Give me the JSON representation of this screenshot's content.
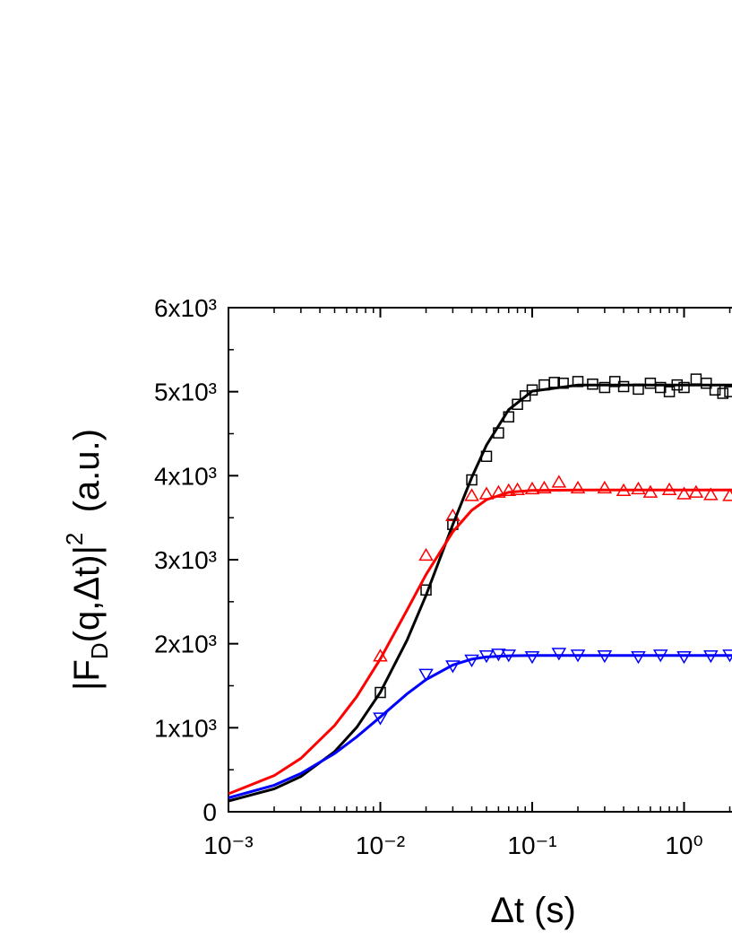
{
  "chart_data": {
    "type": "scatter",
    "xlabel": "Δt (s)",
    "ylabel_parts": [
      "|F",
      "D",
      "(q,Δt)|",
      "2",
      "  (a.u.)"
    ],
    "xscale": "log",
    "xlim": [
      0.001,
      2.1
    ],
    "ylim": [
      0,
      6000
    ],
    "xticks": [
      {
        "value": 0.001,
        "label": "10⁻³"
      },
      {
        "value": 0.01,
        "label": "10⁻²"
      },
      {
        "value": 0.1,
        "label": "10⁻¹"
      },
      {
        "value": 1,
        "label": "10⁰"
      }
    ],
    "xminorticks": [
      0.002,
      0.003,
      0.004,
      0.005,
      0.006,
      0.007,
      0.008,
      0.009,
      0.02,
      0.03,
      0.04,
      0.05,
      0.06,
      0.07,
      0.08,
      0.09,
      0.2,
      0.3,
      0.4,
      0.5,
      0.6,
      0.7,
      0.8,
      0.9,
      2
    ],
    "yticks": [
      0,
      {
        "value": 1000,
        "label": "1x10³"
      },
      {
        "value": 2000,
        "label": "2x10³"
      },
      {
        "value": 3000,
        "label": "3x10³"
      },
      {
        "value": 4000,
        "label": "4x10³"
      },
      {
        "value": 5000,
        "label": "5x10³"
      },
      {
        "value": 6000,
        "label": "6x10³"
      }
    ],
    "yminorticks": [
      500,
      1500,
      2500,
      3500,
      4500,
      5500
    ],
    "series": [
      {
        "color": "#000000",
        "marker": "square",
        "x": [
          0.01,
          0.02,
          0.03,
          0.04,
          0.05,
          0.06,
          0.07,
          0.08,
          0.09,
          0.1,
          0.12,
          0.14,
          0.16,
          0.2,
          0.25,
          0.3,
          0.35,
          0.4,
          0.5,
          0.6,
          0.7,
          0.8,
          0.9,
          1.0,
          1.2,
          1.4,
          1.6,
          1.8,
          2.0
        ],
        "values": [
          1420,
          2640,
          3420,
          3950,
          4230,
          4510,
          4700,
          4850,
          4950,
          5020,
          5080,
          5110,
          5100,
          5120,
          5090,
          5050,
          5120,
          5060,
          5030,
          5100,
          5050,
          5000,
          5080,
          5050,
          5150,
          5100,
          5020,
          4980,
          5000
        ]
      },
      {
        "color": "#ff0000",
        "marker": "triangle-up",
        "x": [
          0.01,
          0.02,
          0.03,
          0.04,
          0.05,
          0.06,
          0.07,
          0.08,
          0.1,
          0.12,
          0.15,
          0.2,
          0.3,
          0.4,
          0.5,
          0.6,
          0.8,
          1.0,
          1.2,
          1.5,
          2.0
        ],
        "values": [
          1850,
          3050,
          3520,
          3760,
          3780,
          3800,
          3820,
          3830,
          3840,
          3850,
          3920,
          3850,
          3850,
          3820,
          3840,
          3800,
          3830,
          3780,
          3800,
          3770,
          3760
        ]
      },
      {
        "color": "#0000ff",
        "marker": "triangle-down",
        "x": [
          0.01,
          0.02,
          0.03,
          0.04,
          0.05,
          0.06,
          0.07,
          0.1,
          0.15,
          0.2,
          0.3,
          0.5,
          0.7,
          1.0,
          1.5,
          2.0
        ],
        "values": [
          1120,
          1640,
          1740,
          1810,
          1860,
          1880,
          1870,
          1850,
          1890,
          1870,
          1860,
          1850,
          1870,
          1850,
          1860,
          1870
        ]
      }
    ],
    "fits": [
      {
        "color": "#000000",
        "x": [
          0.001,
          0.002,
          0.003,
          0.005,
          0.007,
          0.01,
          0.015,
          0.02,
          0.03,
          0.04,
          0.05,
          0.07,
          0.1,
          0.2,
          0.5,
          1,
          2.1
        ],
        "values": [
          128,
          272,
          420,
          716,
          1006,
          1422,
          2042,
          2576,
          3419,
          3978,
          4364,
          4785,
          5006,
          5079,
          5080,
          5080,
          5080
        ]
      },
      {
        "color": "#ff0000",
        "x": [
          0.001,
          0.002,
          0.003,
          0.005,
          0.007,
          0.01,
          0.015,
          0.02,
          0.03,
          0.04,
          0.05,
          0.07,
          0.1,
          0.2,
          0.5,
          1,
          2.1
        ],
        "values": [
          214,
          430,
          636,
          1027,
          1371,
          1819,
          2401,
          2823,
          3332,
          3588,
          3714,
          3803,
          3825,
          3830,
          3830,
          3830,
          3830
        ]
      },
      {
        "color": "#0000ff",
        "x": [
          0.001,
          0.002,
          0.003,
          0.005,
          0.007,
          0.01,
          0.015,
          0.02,
          0.03,
          0.04,
          0.05,
          0.07,
          0.1,
          0.2,
          0.5,
          1,
          2.1
        ],
        "values": [
          166,
          316,
          456,
          694,
          893,
          1129,
          1403,
          1573,
          1747,
          1816,
          1843,
          1857,
          1860,
          1860,
          1860,
          1860,
          1860
        ]
      }
    ]
  }
}
